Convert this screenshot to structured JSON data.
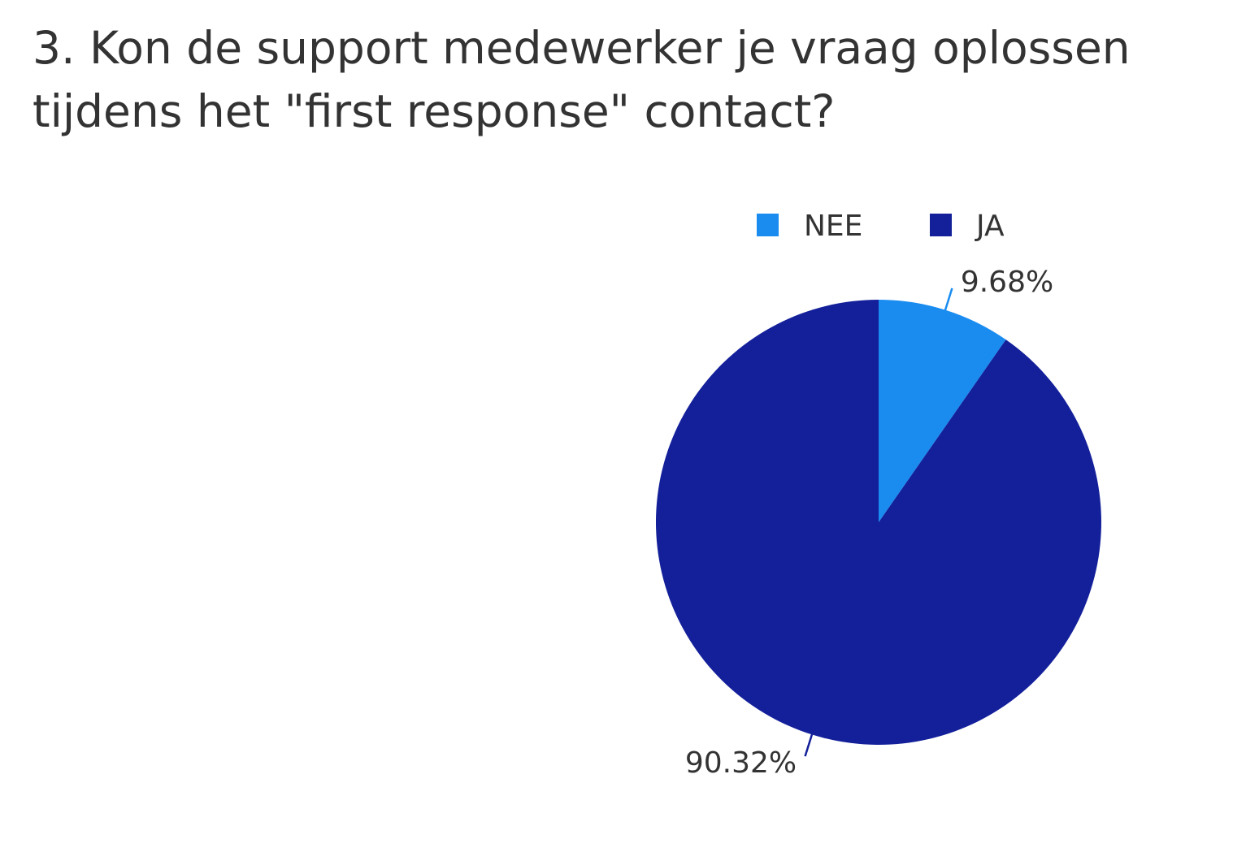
{
  "question": {
    "title": "3. Kon de support medewerker je vraag oplossen tijdens het \"first response\" contact?"
  },
  "chart_data": {
    "type": "pie",
    "title": "",
    "legend_position": "top",
    "start_angle": "12 o'clock",
    "direction": "clockwise",
    "slices": [
      {
        "label": "NEE",
        "value": 9.68,
        "display": "9.68%",
        "color": "#1a8cf0"
      },
      {
        "label": "JA",
        "value": 90.32,
        "display": "90.32%",
        "color": "#13209a"
      }
    ]
  },
  "colors": {
    "title_text": "#333333",
    "label_text": "#333333",
    "background": "#ffffff"
  }
}
